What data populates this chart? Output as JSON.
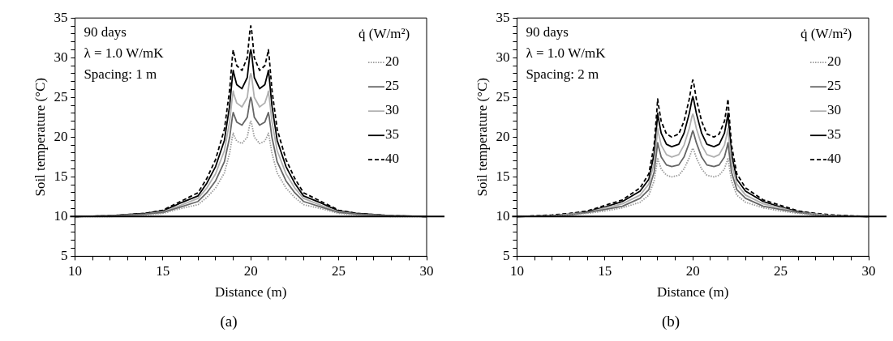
{
  "chart_data": [
    {
      "type": "line",
      "title": "(a)",
      "xlabel": "Distance (m)",
      "ylabel": "Soil temperature (°C)",
      "legend_title": "q̇ (W/m²)",
      "legend": "top right",
      "grid": false,
      "marker": "none",
      "annotations": [
        "90 days",
        "λ = 1.0 W/mK",
        "Spacing: 1 m"
      ],
      "xlim": [
        10,
        30
      ],
      "ylim": [
        5,
        35
      ],
      "xticks": [
        10,
        {
          "value": 11,
          "label": null
        },
        {
          "value": 12,
          "label": null
        },
        {
          "value": 13,
          "label": null
        },
        {
          "value": 14,
          "label": null
        },
        15,
        {
          "value": 16,
          "label": null
        },
        {
          "value": 17,
          "label": null
        },
        {
          "value": 18,
          "label": null
        },
        {
          "value": 19,
          "label": null
        },
        20,
        {
          "value": 21,
          "label": null
        },
        {
          "value": 22,
          "label": null
        },
        {
          "value": 23,
          "label": null
        },
        {
          "value": 24,
          "label": null
        },
        25,
        {
          "value": 26,
          "label": null
        },
        {
          "value": 27,
          "label": null
        },
        {
          "value": 28,
          "label": null
        },
        {
          "value": 29,
          "label": null
        },
        30
      ],
      "yticks": [
        5,
        {
          "value": 6,
          "label": null
        },
        {
          "value": 7,
          "label": null
        },
        {
          "value": 8,
          "label": null
        },
        {
          "value": 9,
          "label": null
        },
        10,
        {
          "value": 11,
          "label": null
        },
        {
          "value": 12,
          "label": null
        },
        {
          "value": 13,
          "label": null
        },
        {
          "value": 14,
          "label": null
        },
        15,
        {
          "value": 16,
          "label": null
        },
        {
          "value": 17,
          "label": null
        },
        {
          "value": 18,
          "label": null
        },
        {
          "value": 19,
          "label": null
        },
        20,
        {
          "value": 21,
          "label": null
        },
        {
          "value": 22,
          "label": null
        },
        {
          "value": 23,
          "label": null
        },
        {
          "value": 24,
          "label": null
        },
        25,
        {
          "value": 26,
          "label": null
        },
        {
          "value": 27,
          "label": null
        },
        {
          "value": 28,
          "label": null
        },
        {
          "value": 29,
          "label": null
        },
        30,
        {
          "value": 31,
          "label": null
        },
        {
          "value": 32,
          "label": null
        },
        {
          "value": 33,
          "label": null
        },
        {
          "value": 34,
          "label": null
        },
        35
      ],
      "ref_lines": [
        {
          "axis": "y",
          "value": 10,
          "color": "#000000",
          "line_style": "solid"
        }
      ],
      "x": [
        10,
        12,
        14,
        15,
        16,
        17,
        17.5,
        18,
        18.5,
        18.8,
        18.95,
        19,
        19.05,
        19.2,
        19.5,
        19.8,
        19.95,
        20,
        20.05,
        20.2,
        20.5,
        20.8,
        20.95,
        21,
        21.05,
        21.2,
        21.5,
        22,
        22.5,
        23,
        24,
        25,
        26,
        28,
        30
      ],
      "series": [
        {
          "name": "20",
          "color": "#9a9a9a",
          "line_style": "dotted",
          "values": [
            10,
            10.0,
            10.2,
            10.4,
            11.0,
            11.5,
            12.4,
            13.6,
            15.5,
            18.0,
            20.0,
            20.5,
            20.2,
            19.5,
            19.2,
            20.0,
            21.7,
            22,
            21.7,
            20.0,
            19.2,
            19.5,
            20.2,
            20.5,
            20.0,
            18.0,
            15.5,
            13.6,
            12.4,
            11.5,
            11.0,
            10.4,
            10.2,
            10.0,
            10
          ]
        },
        {
          "name": "25",
          "color": "#666666",
          "line_style": "solid",
          "values": [
            10,
            10.1,
            10.3,
            10.5,
            11.2,
            11.9,
            13.0,
            14.5,
            16.9,
            20.0,
            22.5,
            23.1,
            22.8,
            21.9,
            21.5,
            22.5,
            24.6,
            25,
            24.6,
            22.5,
            21.5,
            21.9,
            22.8,
            23.1,
            22.5,
            20.0,
            16.9,
            14.5,
            13.0,
            11.9,
            11.2,
            10.5,
            10.3,
            10.1,
            10
          ]
        },
        {
          "name": "30",
          "color": "#b0b0b0",
          "line_style": "solid",
          "values": [
            10,
            10.1,
            10.3,
            10.6,
            11.4,
            12.3,
            13.6,
            15.4,
            18.3,
            22.0,
            25.0,
            25.8,
            25.3,
            24.3,
            23.8,
            25.0,
            27.6,
            28,
            27.6,
            25.0,
            23.8,
            24.3,
            25.3,
            25.8,
            25.0,
            22.0,
            18.3,
            15.4,
            13.6,
            12.3,
            11.4,
            10.6,
            10.3,
            10.1,
            10
          ]
        },
        {
          "name": "35",
          "color": "#000000",
          "line_style": "solid",
          "values": [
            10,
            10.1,
            10.4,
            10.7,
            11.7,
            12.6,
            14.2,
            16.3,
            19.6,
            24.0,
            27.5,
            28.4,
            27.9,
            26.6,
            26.1,
            27.5,
            30.5,
            31,
            30.5,
            27.5,
            26.1,
            26.6,
            27.9,
            28.4,
            27.5,
            24.0,
            19.6,
            16.3,
            14.2,
            12.6,
            11.7,
            10.7,
            10.4,
            10.1,
            10
          ]
        },
        {
          "name": "40",
          "color": "#000000",
          "line_style": "dashed",
          "values": [
            10,
            10.1,
            10.4,
            10.8,
            11.9,
            13.0,
            14.8,
            17.2,
            21.0,
            26.0,
            30.0,
            31.0,
            30.4,
            29.0,
            28.4,
            30.0,
            33.4,
            34,
            33.4,
            30.0,
            28.4,
            29.0,
            30.4,
            31.0,
            30.0,
            26.0,
            21.0,
            17.2,
            14.8,
            13.0,
            11.9,
            10.8,
            10.4,
            10.1,
            10
          ]
        }
      ]
    },
    {
      "type": "line",
      "title": "(b)",
      "xlabel": "Distance (m)",
      "ylabel": "Soil temperature (°C)",
      "legend_title": "q̇ (W/m²)",
      "legend": "top right",
      "grid": false,
      "marker": "none",
      "annotations": [
        "90 days",
        "λ = 1.0 W/mK",
        "Spacing: 2 m"
      ],
      "xlim": [
        10,
        30
      ],
      "ylim": [
        5,
        35
      ],
      "xticks": [
        10,
        {
          "value": 11,
          "label": null
        },
        {
          "value": 12,
          "label": null
        },
        {
          "value": 13,
          "label": null
        },
        {
          "value": 14,
          "label": null
        },
        15,
        {
          "value": 16,
          "label": null
        },
        {
          "value": 17,
          "label": null
        },
        {
          "value": 18,
          "label": null
        },
        {
          "value": 19,
          "label": null
        },
        20,
        {
          "value": 21,
          "label": null
        },
        {
          "value": 22,
          "label": null
        },
        {
          "value": 23,
          "label": null
        },
        {
          "value": 24,
          "label": null
        },
        25,
        {
          "value": 26,
          "label": null
        },
        {
          "value": 27,
          "label": null
        },
        {
          "value": 28,
          "label": null
        },
        {
          "value": 29,
          "label": null
        },
        30
      ],
      "yticks": [
        5,
        {
          "value": 6,
          "label": null
        },
        {
          "value": 7,
          "label": null
        },
        {
          "value": 8,
          "label": null
        },
        {
          "value": 9,
          "label": null
        },
        10,
        {
          "value": 11,
          "label": null
        },
        {
          "value": 12,
          "label": null
        },
        {
          "value": 13,
          "label": null
        },
        {
          "value": 14,
          "label": null
        },
        15,
        {
          "value": 16,
          "label": null
        },
        {
          "value": 17,
          "label": null
        },
        {
          "value": 18,
          "label": null
        },
        {
          "value": 19,
          "label": null
        },
        20,
        {
          "value": 21,
          "label": null
        },
        {
          "value": 22,
          "label": null
        },
        {
          "value": 23,
          "label": null
        },
        {
          "value": 24,
          "label": null
        },
        25,
        {
          "value": 26,
          "label": null
        },
        {
          "value": 27,
          "label": null
        },
        {
          "value": 28,
          "label": null
        },
        {
          "value": 29,
          "label": null
        },
        30,
        {
          "value": 31,
          "label": null
        },
        {
          "value": 32,
          "label": null
        },
        {
          "value": 33,
          "label": null
        },
        {
          "value": 34,
          "label": null
        },
        35
      ],
      "ref_lines": [
        {
          "axis": "y",
          "value": 10,
          "color": "#000000",
          "line_style": "solid"
        }
      ],
      "x": [
        10,
        12,
        13,
        14,
        15,
        16,
        17,
        17.5,
        17.8,
        17.95,
        18,
        18.05,
        18.2,
        18.5,
        18.8,
        19.2,
        19.5,
        19.8,
        19.95,
        20,
        20.05,
        20.2,
        20.5,
        20.8,
        21.2,
        21.5,
        21.8,
        21.95,
        22,
        22.05,
        22.2,
        22.5,
        23,
        24,
        25,
        26,
        27,
        28,
        30
      ],
      "series": [
        {
          "name": "20",
          "color": "#9a9a9a",
          "line_style": "dotted",
          "values": [
            10,
            10.1,
            10.2,
            10.4,
            10.7,
            11.1,
            11.8,
            12.7,
            14.5,
            16.6,
            17.4,
            17.0,
            16.0,
            15.2,
            15.0,
            15.2,
            16.0,
            17.4,
            18.4,
            18.6,
            18.4,
            17.4,
            16.0,
            15.2,
            15.0,
            15.2,
            16.0,
            17.0,
            17.4,
            16.6,
            14.5,
            12.7,
            11.8,
            11.1,
            10.7,
            10.4,
            10.2,
            10.1,
            10
          ]
        },
        {
          "name": "25",
          "color": "#666666",
          "line_style": "solid",
          "values": [
            10,
            10.1,
            10.2,
            10.5,
            10.9,
            11.3,
            12.3,
            13.4,
            15.6,
            18.3,
            19.3,
            18.8,
            17.5,
            16.5,
            16.3,
            16.5,
            17.5,
            19.3,
            20.5,
            20.8,
            20.5,
            19.3,
            17.5,
            16.5,
            16.3,
            16.5,
            17.5,
            18.8,
            19.3,
            18.3,
            15.6,
            13.4,
            12.3,
            11.3,
            10.9,
            10.5,
            10.2,
            10.1,
            10
          ]
        },
        {
          "name": "30",
          "color": "#b0b0b0",
          "line_style": "solid",
          "values": [
            10,
            10.1,
            10.3,
            10.5,
            11.1,
            11.6,
            12.7,
            14.1,
            16.8,
            19.9,
            21.1,
            20.5,
            19.0,
            17.8,
            17.5,
            17.8,
            19.0,
            21.1,
            22.6,
            22.9,
            22.6,
            21.1,
            19.0,
            17.8,
            17.5,
            17.8,
            19.0,
            20.5,
            21.1,
            19.9,
            16.8,
            14.1,
            12.7,
            11.6,
            11.1,
            10.5,
            10.3,
            10.1,
            10
          ]
        },
        {
          "name": "35",
          "color": "#000000",
          "line_style": "solid",
          "values": [
            10,
            10.1,
            10.3,
            10.6,
            11.2,
            11.9,
            13.2,
            14.7,
            17.9,
            21.6,
            23.0,
            22.3,
            20.5,
            19.1,
            18.8,
            19.1,
            20.5,
            23.0,
            24.7,
            25.1,
            24.7,
            23.0,
            20.5,
            19.1,
            18.8,
            19.1,
            20.5,
            22.3,
            23.0,
            21.6,
            17.9,
            14.7,
            13.2,
            11.9,
            11.2,
            10.6,
            10.3,
            10.1,
            10
          ]
        },
        {
          "name": "40",
          "color": "#000000",
          "line_style": "dashed",
          "values": [
            10,
            10.2,
            10.4,
            10.7,
            11.4,
            12.1,
            13.6,
            15.4,
            19.0,
            23.2,
            24.8,
            24.0,
            22.0,
            20.4,
            20.0,
            20.4,
            22.0,
            24.8,
            26.8,
            27.2,
            26.8,
            24.8,
            22.0,
            20.4,
            20.0,
            20.4,
            22.0,
            24.0,
            24.8,
            23.2,
            19.0,
            15.4,
            13.6,
            12.1,
            11.4,
            10.7,
            10.4,
            10.2,
            10
          ]
        }
      ]
    }
  ]
}
